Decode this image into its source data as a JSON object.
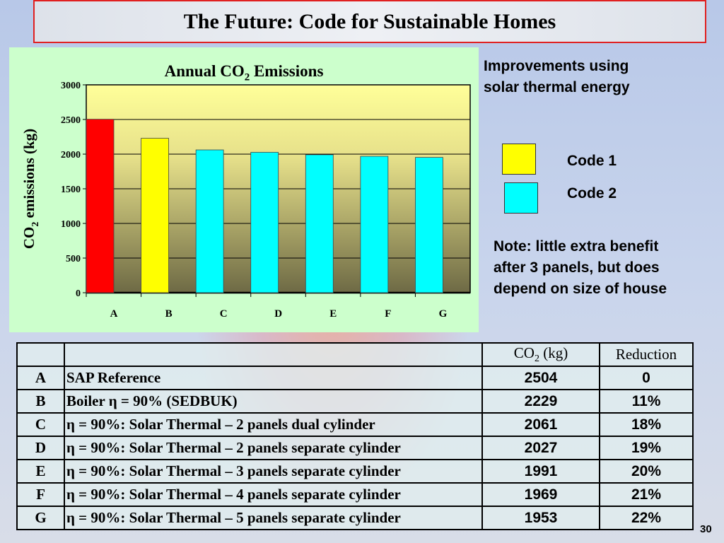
{
  "slide": {
    "title": "The Future:  Code for Sustainable Homes",
    "page_number": "30"
  },
  "side": {
    "heading_line1": "Improvements using",
    "heading_line2": "solar thermal energy",
    "legend": [
      {
        "label": "Code 1",
        "color": "#ffff00"
      },
      {
        "label": "Code 2",
        "color": "#00ffff"
      }
    ],
    "note_line1": "Note: little extra benefit",
    "note_line2": "after 3 panels, but does",
    "note_line3": "depend on size of house"
  },
  "chart_data": {
    "type": "bar",
    "title": "Annual CO2 Emissions",
    "title_main": "Annual CO",
    "title_sub": "2",
    "title_end": " Emissions",
    "ylabel": "CO2 emissions (kg)",
    "ylabel_main": "CO",
    "ylabel_sub": "2",
    "ylabel_end": " emissions (kg)",
    "categories": [
      "A",
      "B",
      "C",
      "D",
      "E",
      "F",
      "G"
    ],
    "values": [
      2504,
      2229,
      2061,
      2027,
      1991,
      1969,
      1953
    ],
    "colors": [
      "#ff0000",
      "#ffff00",
      "#00ffff",
      "#00ffff",
      "#00ffff",
      "#00ffff",
      "#00ffff"
    ],
    "ylim": [
      0,
      3000
    ],
    "yticks": [
      "0",
      "500",
      "1000",
      "1500",
      "2000",
      "2500",
      "3000"
    ],
    "grid": true
  },
  "table": {
    "headers": [
      "",
      "",
      "CO2 (kg)",
      "Reduction"
    ],
    "co2_header_main": "CO",
    "co2_header_sub": "2",
    "co2_header_end": " (kg)",
    "rows": [
      [
        "A",
        "SAP Reference",
        "2504",
        "0"
      ],
      [
        "B",
        "Boiler η = 90% (SEDBUK)",
        "2229",
        "11%"
      ],
      [
        "C",
        "η = 90%: Solar Thermal – 2 panels dual cylinder",
        "2061",
        "18%"
      ],
      [
        "D",
        "η = 90%: Solar Thermal – 2 panels separate cylinder",
        "2027",
        "19%"
      ],
      [
        "E",
        "η = 90%: Solar Thermal – 3 panels separate cylinder",
        "1991",
        "20%"
      ],
      [
        "F",
        "η = 90%: Solar Thermal – 4 panels separate cylinder",
        "1969",
        "21%"
      ],
      [
        "G",
        "η = 90%: Solar Thermal – 5 panels separate cylinder",
        "1953",
        "22%"
      ]
    ]
  }
}
